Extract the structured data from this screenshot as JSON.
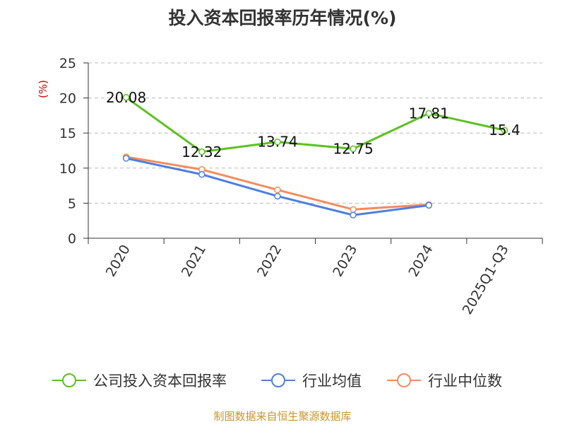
{
  "chart_data": {
    "type": "line",
    "title": "投入资本回报率历年情况(%)",
    "ylabel": "(%)",
    "xlabel": "",
    "categories": [
      "2020",
      "2021",
      "2022",
      "2023",
      "2024",
      "2025Q1-Q3"
    ],
    "ylim": [
      0,
      25
    ],
    "yticks": [
      0,
      5,
      10,
      15,
      20,
      25
    ],
    "grid": true,
    "legend_position": "bottom",
    "series": [
      {
        "name": "公司投入资本回报率",
        "color": "#5bc21e",
        "values": [
          20.08,
          12.32,
          13.74,
          12.75,
          17.81,
          15.4
        ],
        "labels": [
          "20.08",
          "12.32",
          "13.74",
          "12.75",
          "17.81",
          "15.4"
        ]
      },
      {
        "name": "行业均值",
        "color": "#4e7fde",
        "values": [
          11.4,
          9.1,
          6.0,
          3.3,
          4.7,
          null
        ]
      },
      {
        "name": "行业中位数",
        "color": "#f28c5e",
        "values": [
          11.6,
          9.8,
          6.9,
          4.1,
          4.8,
          null
        ]
      }
    ]
  },
  "source": "制图数据来自恒生聚源数据库",
  "colors": {
    "axis": "#333333",
    "grid": "#bbbbbb",
    "title": "#333333",
    "source": "#c8962a",
    "ylabel": "#cc0000"
  }
}
